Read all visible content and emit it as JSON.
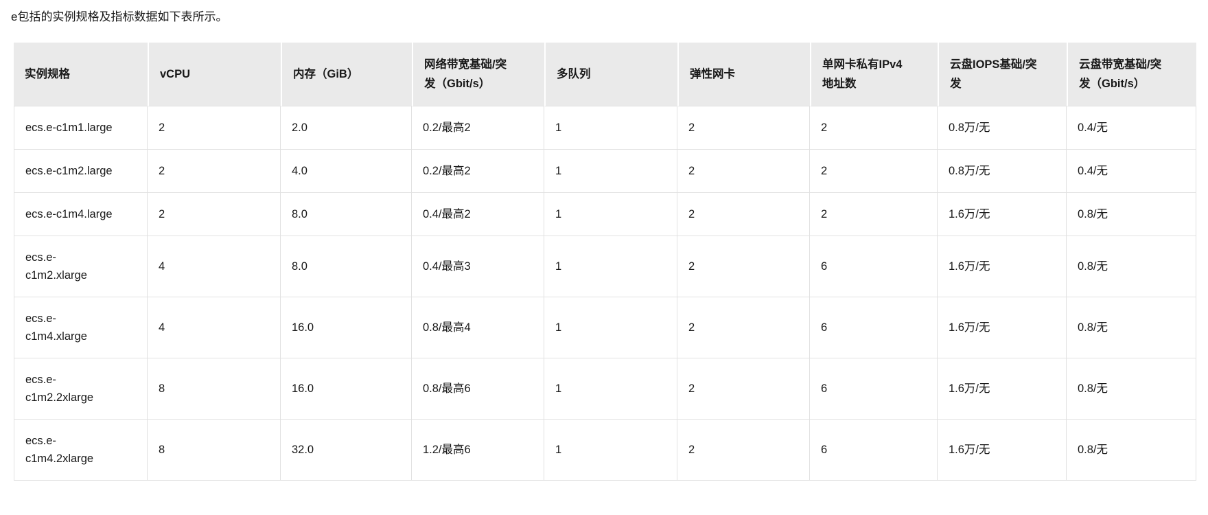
{
  "intro": {
    "text": "e包括的实例规格及指标数据如下表所示。"
  },
  "colors": {
    "header_bg": "#EAEAEA",
    "grid_border": "#E1E1E1",
    "text": "#181818",
    "background": "#FFFFFF"
  },
  "table": {
    "columns": [
      {
        "id": "instance-spec",
        "label": "实例规格"
      },
      {
        "id": "vcpu",
        "label": "vCPU"
      },
      {
        "id": "memory-gib",
        "label": "内存（GiB）"
      },
      {
        "id": "network-bandwidth",
        "label": [
          "网络带宽基础/突",
          "发（Gbit/s）"
        ]
      },
      {
        "id": "multi-queue",
        "label": "多队列"
      },
      {
        "id": "eni",
        "label": "弹性网卡"
      },
      {
        "id": "private-ipv4-count",
        "label": [
          "单网卡私有IPv4",
          "地址数"
        ]
      },
      {
        "id": "disk-iops",
        "label": [
          "云盘IOPS基础/突",
          "发"
        ]
      },
      {
        "id": "disk-bandwidth",
        "label": [
          "云盘带宽基础/突",
          "发（Gbit/s）"
        ]
      }
    ],
    "rows": [
      {
        "cells": [
          "ecs.e-c1m1.large",
          "2",
          "2.0",
          "0.2/最高2",
          "1",
          "2",
          "2",
          "0.8万/无",
          "0.4/无"
        ]
      },
      {
        "cells": [
          "ecs.e-c1m2.large",
          "2",
          "4.0",
          "0.2/最高2",
          "1",
          "2",
          "2",
          "0.8万/无",
          "0.4/无"
        ]
      },
      {
        "cells": [
          "ecs.e-c1m4.large",
          "2",
          "8.0",
          "0.4/最高2",
          "1",
          "2",
          "2",
          "1.6万/无",
          "0.8/无"
        ]
      },
      {
        "cells": [
          [
            "ecs.e-",
            "c1m2.xlarge"
          ],
          "4",
          "8.0",
          "0.4/最高3",
          "1",
          "2",
          "6",
          "1.6万/无",
          "0.8/无"
        ]
      },
      {
        "cells": [
          [
            "ecs.e-",
            "c1m4.xlarge"
          ],
          "4",
          "16.0",
          "0.8/最高4",
          "1",
          "2",
          "6",
          "1.6万/无",
          "0.8/无"
        ]
      },
      {
        "cells": [
          [
            "ecs.e-",
            "c1m2.2xlarge"
          ],
          "8",
          "16.0",
          "0.8/最高6",
          "1",
          "2",
          "6",
          "1.6万/无",
          "0.8/无"
        ]
      },
      {
        "cells": [
          [
            "ecs.e-",
            "c1m4.2xlarge"
          ],
          "8",
          "32.0",
          "1.2/最高6",
          "1",
          "2",
          "6",
          "1.6万/无",
          "0.8/无"
        ]
      }
    ]
  }
}
